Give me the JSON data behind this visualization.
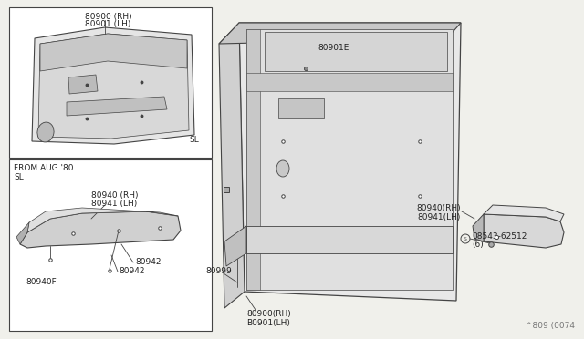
{
  "bg_color": "#f0f0eb",
  "line_color": "#444444",
  "watermark": "^809 (0074",
  "labels": {
    "top_box_part1": "80900 (RH)",
    "top_box_part2": "80901 (LH)",
    "top_box_tag": "SL",
    "bottom_box_header1": "FROM AUG.'80",
    "bottom_box_header2": "SL",
    "bottom_box_part1": "80940 (RH)",
    "bottom_box_part2": "80941 (LH)",
    "bottom_box_sub1": "80942",
    "bottom_box_sub2": "80942",
    "bottom_box_sub3": "80940F",
    "main_part_top": "80901E",
    "main_door_part1": "80900(RH)",
    "main_door_part2": "B0901(LH)",
    "main_clip": "80999",
    "right_armrest1": "80940(RH)",
    "right_armrest2": "80941(LH)",
    "right_screw_label": "08543-62512",
    "right_screw_qty": "(6)"
  },
  "fs": 6.5,
  "fc": "#222222"
}
